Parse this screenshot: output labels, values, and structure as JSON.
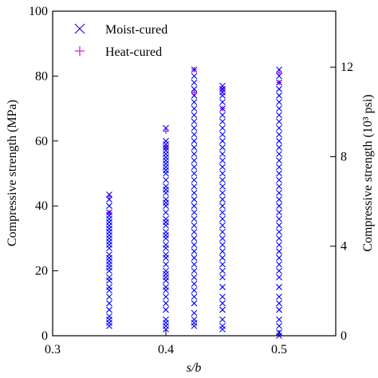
{
  "chart_data": {
    "type": "scatter",
    "xlabel": "s/b",
    "ylabel": "Compressive strength (MPa)",
    "y2label": "Compressive strength (10³ psi)",
    "xlim": [
      0.3,
      0.55
    ],
    "ylim": [
      0,
      100
    ],
    "y2lim": [
      0,
      14.5
    ],
    "xticks": [
      "0.3",
      "0.4",
      "0.5"
    ],
    "yticks": [
      "0",
      "20",
      "40",
      "60",
      "80",
      "100"
    ],
    "y2ticks": [
      "0",
      "4",
      "8",
      "12"
    ],
    "legend_position": "top-left",
    "grid": false,
    "series": [
      {
        "name": "Moist-cured",
        "marker": "x",
        "color": "#0000ff",
        "groups": [
          {
            "x": 0.35,
            "y": [
              3,
              4,
              5,
              6,
              8,
              10,
              12,
              14,
              15,
              17,
              18,
              20,
              21,
              22,
              23,
              24,
              25,
              27,
              28,
              29,
              30,
              31,
              32,
              33,
              34,
              35,
              36,
              37,
              38,
              40,
              42,
              43.5
            ]
          },
          {
            "x": 0.4,
            "y": [
              2,
              3,
              4,
              5,
              8,
              10,
              12,
              14,
              15,
              17,
              18,
              19,
              20,
              22,
              24,
              25,
              27,
              28,
              30,
              31,
              32,
              34,
              35,
              36,
              38,
              40,
              41,
              42,
              44,
              45,
              46,
              48,
              50,
              51,
              52,
              53,
              54,
              55,
              56,
              57,
              58,
              59,
              60,
              64
            ]
          },
          {
            "x": 0.425,
            "y": [
              3,
              4,
              5,
              7,
              10,
              12,
              14,
              16,
              18,
              20,
              22,
              24,
              26,
              28,
              30,
              32,
              34,
              36,
              38,
              40,
              42,
              44,
              46,
              48,
              50,
              52,
              54,
              56,
              58,
              60,
              62,
              64,
              66,
              68,
              70,
              72,
              74,
              76,
              78,
              80,
              82
            ]
          },
          {
            "x": 0.45,
            "y": [
              2,
              3,
              5,
              8,
              10,
              12,
              15,
              18,
              20,
              22,
              24,
              26,
              28,
              30,
              32,
              34,
              36,
              38,
              40,
              42,
              44,
              46,
              48,
              50,
              52,
              54,
              56,
              58,
              60,
              62,
              64,
              66,
              68,
              70,
              72,
              74,
              75,
              76,
              77
            ]
          },
          {
            "x": 0.5,
            "y": [
              0,
              1,
              3,
              5,
              8,
              10,
              12,
              15,
              18,
              20,
              22,
              24,
              26,
              28,
              30,
              32,
              34,
              36,
              38,
              40,
              42,
              44,
              46,
              48,
              50,
              52,
              54,
              56,
              58,
              60,
              62,
              64,
              66,
              68,
              70,
              72,
              74,
              76,
              78,
              80,
              82
            ]
          }
        ]
      },
      {
        "name": "Heat-cured",
        "marker": "+",
        "color": "#cc00cc",
        "groups": [
          {
            "x": 0.35,
            "y": [
              38,
              43
            ]
          },
          {
            "x": 0.4,
            "y": [
              58,
              63
            ]
          },
          {
            "x": 0.425,
            "y": [
              75,
              82
            ]
          },
          {
            "x": 0.45,
            "y": [
              70,
              76
            ]
          },
          {
            "x": 0.5,
            "y": [
              78,
              81
            ]
          }
        ]
      }
    ]
  }
}
